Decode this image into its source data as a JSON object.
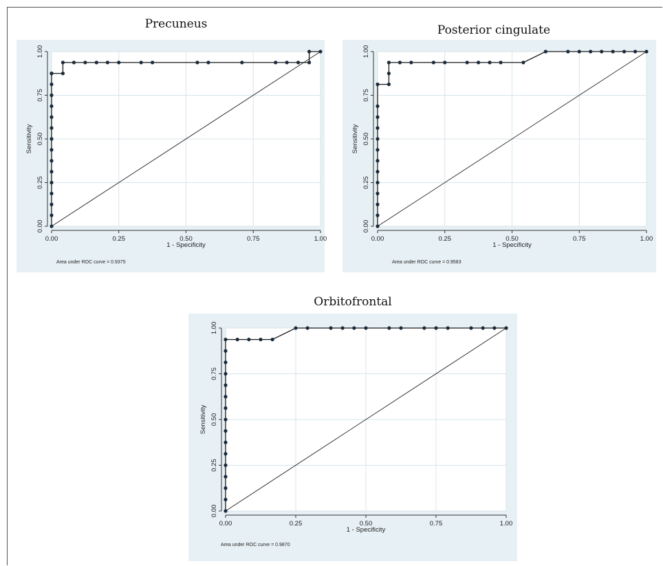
{
  "chart_data": [
    {
      "type": "line",
      "title": "Precuneus",
      "xlabel": "1 - Specificity",
      "ylabel": "Sensitivity",
      "xlim": [
        0,
        1
      ],
      "ylim": [
        0,
        1
      ],
      "xticks": [
        "0.00",
        "0.25",
        "0.50",
        "0.75",
        "1.00"
      ],
      "yticks": [
        "0.00",
        "0.25",
        "0.50",
        "0.75",
        "1.00"
      ],
      "grid": true,
      "annotation": "Area under ROC curve = 0.9375",
      "series": [
        {
          "x": [
            0,
            0,
            0,
            0,
            0,
            0,
            0,
            0,
            0,
            0,
            0,
            0,
            0,
            0,
            0,
            0,
            0.042,
            0.042,
            0.083,
            0.125,
            0.167,
            0.208,
            0.25,
            0.333,
            0.375,
            0.542,
            0.583,
            0.708,
            0.833,
            0.875,
            0.917,
            0.958,
            0.958,
            1.0
          ],
          "y": [
            0,
            0.0625,
            0.125,
            0.1875,
            0.25,
            0.3125,
            0.375,
            0.4375,
            0.5,
            0.5625,
            0.625,
            0.6875,
            0.75,
            0.8125,
            0.875,
            0.875,
            0.875,
            0.9375,
            0.9375,
            0.9375,
            0.9375,
            0.9375,
            0.9375,
            0.9375,
            0.9375,
            0.9375,
            0.9375,
            0.9375,
            0.9375,
            0.9375,
            0.9375,
            0.9375,
            1.0,
            1.0
          ]
        },
        {
          "x": [
            0,
            1
          ],
          "y": [
            0,
            1
          ]
        }
      ]
    },
    {
      "type": "line",
      "title": "Posterior cingulate",
      "xlabel": "1 - Specificity",
      "ylabel": "Sensitivity",
      "xlim": [
        0,
        1
      ],
      "ylim": [
        0,
        1
      ],
      "xticks": [
        "0.00",
        "0.25",
        "0.50",
        "0.75",
        "1.00"
      ],
      "yticks": [
        "0.00",
        "0.25",
        "0.50",
        "0.75",
        "1.00"
      ],
      "grid": true,
      "annotation": "Area under ROC curve = 0.9583",
      "series": [
        {
          "x": [
            0,
            0,
            0,
            0,
            0,
            0,
            0,
            0,
            0,
            0,
            0,
            0,
            0,
            0.042,
            0.042,
            0.042,
            0.083,
            0.125,
            0.208,
            0.25,
            0.333,
            0.375,
            0.417,
            0.458,
            0.542,
            0.625,
            0.708,
            0.75,
            0.792,
            0.833,
            0.875,
            0.917,
            0.958,
            1.0
          ],
          "y": [
            0,
            0.0625,
            0.125,
            0.1875,
            0.25,
            0.3125,
            0.375,
            0.4375,
            0.5,
            0.5625,
            0.625,
            0.6875,
            0.8125,
            0.8125,
            0.875,
            0.9375,
            0.9375,
            0.9375,
            0.9375,
            0.9375,
            0.9375,
            0.9375,
            0.9375,
            0.9375,
            0.9375,
            1.0,
            1.0,
            1.0,
            1.0,
            1.0,
            1.0,
            1.0,
            1.0,
            1.0
          ]
        },
        {
          "x": [
            0,
            1
          ],
          "y": [
            0,
            1
          ]
        }
      ]
    },
    {
      "type": "line",
      "title": "Orbitofrontal",
      "xlabel": "1 - Specificity",
      "ylabel": "Sensitivity",
      "xlim": [
        0,
        1
      ],
      "ylim": [
        0,
        1
      ],
      "xticks": [
        "0.00",
        "0.25",
        "0.50",
        "0.75",
        "1.00"
      ],
      "yticks": [
        "0.00",
        "0.25",
        "0.50",
        "0.75",
        "1.00"
      ],
      "grid": true,
      "annotation": "Area under ROC curve = 0.9870",
      "series": [
        {
          "x": [
            0,
            0,
            0,
            0,
            0,
            0,
            0,
            0,
            0,
            0,
            0,
            0,
            0,
            0,
            0,
            0,
            0.042,
            0.083,
            0.125,
            0.167,
            0.25,
            0.292,
            0.375,
            0.417,
            0.458,
            0.5,
            0.583,
            0.625,
            0.708,
            0.75,
            0.792,
            0.875,
            0.917,
            0.958,
            1.0
          ],
          "y": [
            0,
            0.0625,
            0.125,
            0.1875,
            0.25,
            0.3125,
            0.375,
            0.4375,
            0.5,
            0.5625,
            0.625,
            0.6875,
            0.75,
            0.8125,
            0.875,
            0.9375,
            0.9375,
            0.9375,
            0.9375,
            0.9375,
            1.0,
            1.0,
            1.0,
            1.0,
            1.0,
            1.0,
            1.0,
            1.0,
            1.0,
            1.0,
            1.0,
            1.0,
            1.0,
            1.0,
            1.0
          ]
        },
        {
          "x": [
            0,
            1
          ],
          "y": [
            0,
            1
          ]
        }
      ]
    }
  ],
  "colors": {
    "panel_background": "#e7f0f4",
    "plot_background": "#ffffff",
    "grid": "#d7e4ea",
    "line": "#1a1a1a",
    "marker": "#1a2a3a"
  }
}
